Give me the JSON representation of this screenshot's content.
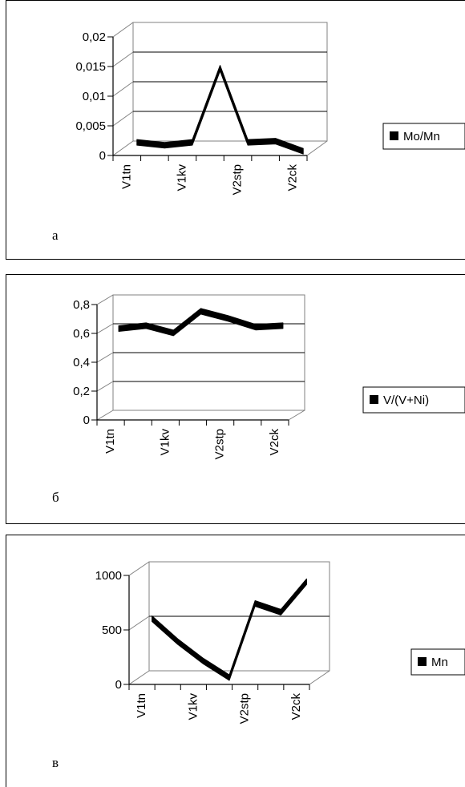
{
  "chart_data": [
    {
      "type": "line",
      "panel_label": "а",
      "categories": [
        "V1tn",
        "",
        "V1kv",
        "",
        "V2stp",
        "",
        "V2ck"
      ],
      "tick_labels": [
        "0,02",
        "0,015",
        "0,01",
        "0,005",
        "0"
      ],
      "ylim": [
        0,
        0.02
      ],
      "series": [
        {
          "name": "Mo/Mn",
          "values": [
            0.001,
            0.0005,
            0.001,
            0.0135,
            0.001,
            0.0012,
            -0.0005
          ]
        }
      ],
      "legend_position": "right",
      "grid": true,
      "three_d": true
    },
    {
      "type": "line",
      "panel_label": "б",
      "categories": [
        "V1tn",
        "",
        "V1kv",
        "",
        "V2stp",
        "",
        "V2ck"
      ],
      "tick_labels": [
        "0,8",
        "0,6",
        "0,4",
        "0,2",
        "0"
      ],
      "ylim": [
        0,
        0.8
      ],
      "series": [
        {
          "name": "V/(V+Ni)",
          "values": [
            0.6,
            0.62,
            0.57,
            0.72,
            0.67,
            0.61,
            0.62
          ]
        }
      ],
      "legend_position": "right",
      "grid": true,
      "three_d": true
    },
    {
      "type": "line",
      "panel_label": "в",
      "categories": [
        "V1tn",
        "",
        "V1kv",
        "",
        "V2stp",
        "",
        "V2ck"
      ],
      "tick_labels": [
        "1000",
        "500",
        "0"
      ],
      "ylim": [
        0,
        1000
      ],
      "series": [
        {
          "name": "Mn",
          "values": [
            540,
            330,
            150,
            0,
            680,
            600,
            880
          ]
        }
      ],
      "legend_position": "right",
      "grid": true,
      "three_d": true
    }
  ],
  "colors": {
    "line": "#000000",
    "axis": "#000000",
    "background": "#ffffff"
  }
}
